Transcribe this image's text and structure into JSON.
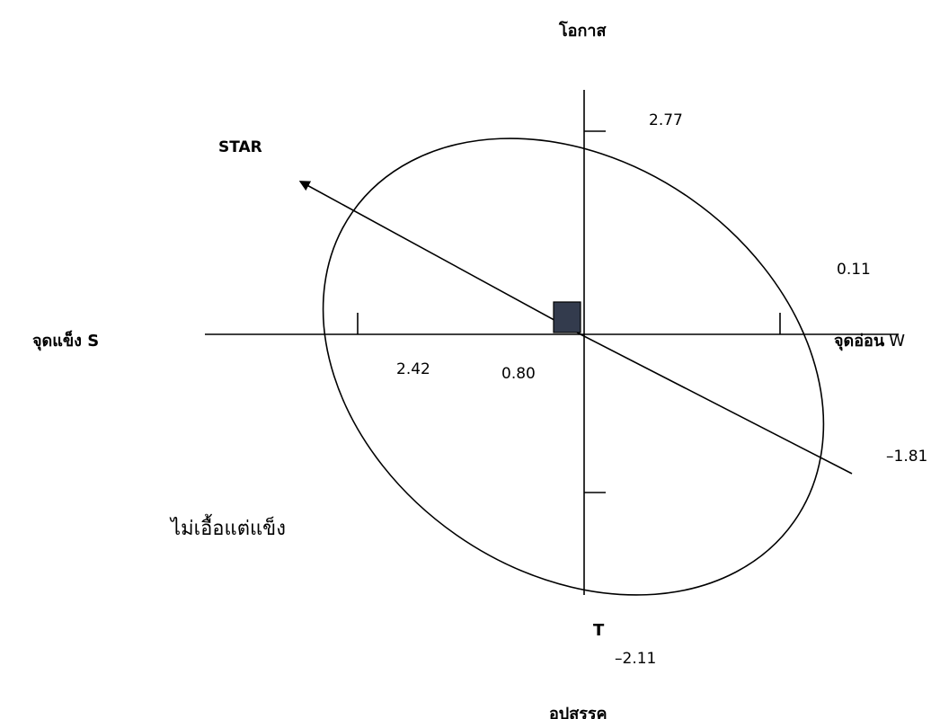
{
  "diagram": {
    "top_label": "โอกาส",
    "bottom_label": "อุปสรรค",
    "left_label": "จุดแข็ง S",
    "right_label_main": "จุดอ่อน",
    "right_label_letter": "W",
    "star_label": "STAR",
    "t_label": "T",
    "quadrant_label": "ไม่เอื้อแต่แข็ง",
    "values": {
      "opportunity": "2.77",
      "weakness": "0.11",
      "strength": "2.42",
      "center_offset": "0.80",
      "threat": "–2.11",
      "lower_right": "–1.81"
    },
    "colors": {
      "line": "#000000",
      "center_square": "#333b4d"
    }
  }
}
